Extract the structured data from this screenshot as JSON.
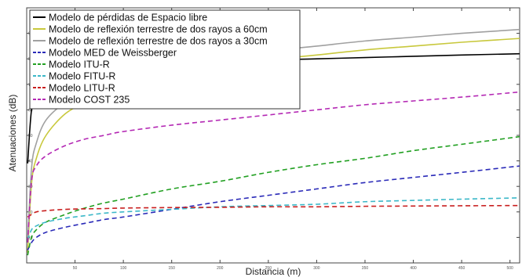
{
  "chart_data": {
    "type": "line",
    "title": "",
    "xlabel": "Distancia (m)",
    "ylabel": "Atenuaciones (dB)",
    "xlim": [
      0,
      510
    ],
    "ylim": [
      0,
      100
    ],
    "x_ticks": [
      50,
      100,
      150,
      200,
      250,
      300,
      350,
      400,
      450,
      500
    ],
    "y_ticks": [
      10,
      20,
      30,
      40,
      50,
      60,
      70,
      80,
      90
    ],
    "grid": false,
    "legend_position": "top-left",
    "x": [
      1,
      5,
      10,
      20,
      40,
      60,
      80,
      100,
      150,
      200,
      250,
      300,
      350,
      400,
      450,
      510
    ],
    "series": [
      {
        "name": "Modelo de pérdidas de Espacio libre",
        "color": "#000000",
        "dash": "solid",
        "values": [
          39,
          60,
          63,
          66.5,
          70,
          72.5,
          74,
          75.5,
          77.5,
          78.5,
          79.5,
          80,
          80.5,
          81,
          81.5,
          82
        ]
      },
      {
        "name": "Modelo de reflexión terrestre de dos rayos a 60cm",
        "color": "#c8c83c",
        "dash": "solid",
        "values": [
          4,
          31,
          41,
          50,
          58.5,
          62.5,
          65.5,
          68,
          73,
          76.5,
          79.5,
          81.5,
          83.5,
          85,
          86.5,
          88
        ]
      },
      {
        "name": "Modelo de reflexión terrestre de dos rayos a 30cm",
        "color": "#a0a0a0",
        "dash": "solid",
        "values": [
          8,
          37,
          47,
          56,
          63,
          67,
          70,
          72.5,
          77,
          80,
          83,
          85,
          87,
          88.5,
          90,
          91.5
        ]
      },
      {
        "name": "Modelo MED de Weissberger",
        "color": "#2a2ab8",
        "dash": "dashed",
        "values": [
          5,
          8,
          10,
          12,
          14,
          15.5,
          17,
          18,
          21,
          24,
          26.5,
          29,
          31.5,
          33.5,
          35.5,
          38
        ]
      },
      {
        "name": "Modelo ITU-R",
        "color": "#22a022",
        "dash": "dashed",
        "values": [
          3,
          10,
          13,
          16,
          19,
          21.5,
          23.5,
          25,
          29,
          32,
          35.5,
          38.5,
          41,
          44,
          46.5,
          49.5
        ]
      },
      {
        "name": "Modelo FITU-R",
        "color": "#3cb8c8",
        "dash": "dashed",
        "values": [
          9,
          13,
          14.5,
          16,
          17.5,
          18.5,
          19.5,
          20,
          21,
          22,
          22.5,
          23,
          24,
          24.5,
          25,
          25.5
        ]
      },
      {
        "name": "Modelo LITU-R",
        "color": "#c81e1e",
        "dash": "dashed",
        "values": [
          18,
          19,
          20,
          20.5,
          21,
          21.2,
          21.3,
          21.5,
          21.7,
          21.8,
          22,
          22,
          22.2,
          22.3,
          22.4,
          22.5
        ]
      },
      {
        "name": "Modelo COST 235",
        "color": "#b428b4",
        "dash": "dashed",
        "values": [
          8,
          32,
          38,
          42,
          46,
          48.5,
          50,
          51.5,
          54,
          56,
          58,
          60,
          62,
          63.5,
          65,
          67
        ]
      }
    ]
  }
}
